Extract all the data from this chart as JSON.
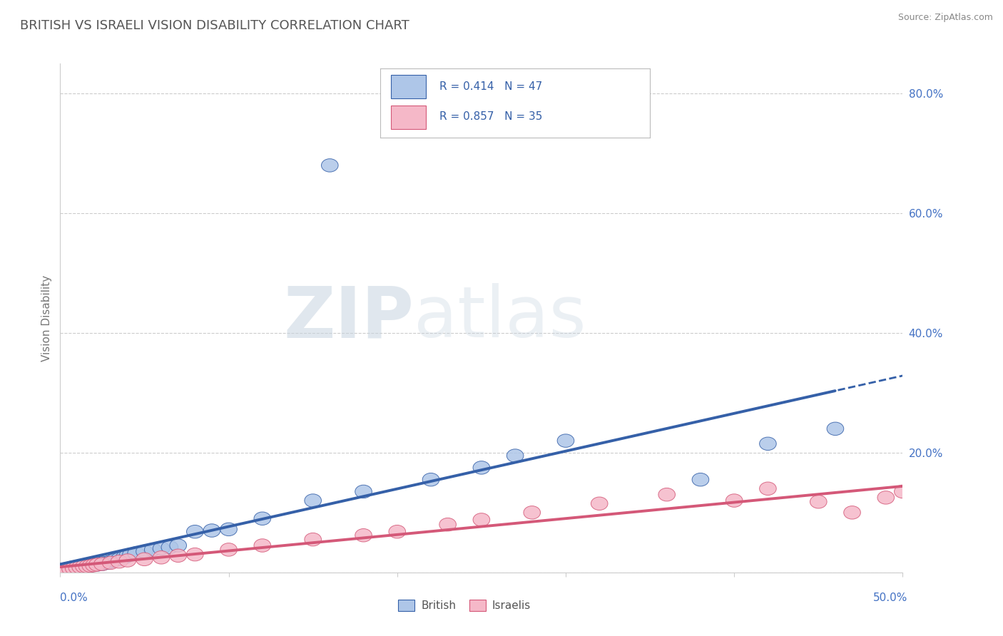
{
  "title": "BRITISH VS ISRAELI VISION DISABILITY CORRELATION CHART",
  "source": "Source: ZipAtlas.com",
  "ylabel": "Vision Disability",
  "xlim": [
    0.0,
    0.5
  ],
  "ylim": [
    0.0,
    0.85
  ],
  "ytick_vals": [
    0.0,
    0.2,
    0.4,
    0.6,
    0.8
  ],
  "ytick_labels": [
    "",
    "20.0%",
    "40.0%",
    "60.0%",
    "80.0%"
  ],
  "grid_color": "#cccccc",
  "background_color": "#ffffff",
  "british_color": "#aec6e8",
  "british_line_color": "#3560a8",
  "israeli_color": "#f5b8c8",
  "israeli_line_color": "#d45878",
  "british_R": 0.414,
  "british_N": 47,
  "israeli_R": 0.857,
  "israeli_N": 35,
  "british_scatter_x": [
    0.002,
    0.004,
    0.006,
    0.007,
    0.008,
    0.009,
    0.01,
    0.011,
    0.012,
    0.013,
    0.014,
    0.015,
    0.016,
    0.018,
    0.019,
    0.02,
    0.022,
    0.023,
    0.025,
    0.026,
    0.028,
    0.03,
    0.032,
    0.035,
    0.038,
    0.04,
    0.042,
    0.045,
    0.05,
    0.055,
    0.06,
    0.065,
    0.07,
    0.08,
    0.09,
    0.1,
    0.12,
    0.15,
    0.16,
    0.18,
    0.22,
    0.25,
    0.27,
    0.3,
    0.38,
    0.42,
    0.46
  ],
  "british_scatter_y": [
    0.005,
    0.006,
    0.007,
    0.008,
    0.006,
    0.009,
    0.008,
    0.01,
    0.009,
    0.011,
    0.01,
    0.012,
    0.011,
    0.013,
    0.012,
    0.014,
    0.013,
    0.015,
    0.014,
    0.016,
    0.016,
    0.018,
    0.02,
    0.022,
    0.025,
    0.028,
    0.03,
    0.032,
    0.035,
    0.038,
    0.04,
    0.042,
    0.045,
    0.068,
    0.07,
    0.072,
    0.09,
    0.12,
    0.68,
    0.135,
    0.155,
    0.175,
    0.195,
    0.22,
    0.155,
    0.215,
    0.24
  ],
  "israeli_scatter_x": [
    0.002,
    0.004,
    0.006,
    0.008,
    0.01,
    0.012,
    0.014,
    0.016,
    0.018,
    0.02,
    0.022,
    0.025,
    0.03,
    0.035,
    0.04,
    0.05,
    0.06,
    0.07,
    0.08,
    0.1,
    0.12,
    0.15,
    0.18,
    0.2,
    0.23,
    0.25,
    0.28,
    0.32,
    0.36,
    0.4,
    0.42,
    0.45,
    0.47,
    0.49,
    0.5
  ],
  "israeli_scatter_y": [
    0.004,
    0.005,
    0.006,
    0.007,
    0.008,
    0.009,
    0.01,
    0.01,
    0.011,
    0.012,
    0.013,
    0.014,
    0.016,
    0.018,
    0.02,
    0.022,
    0.025,
    0.028,
    0.03,
    0.038,
    0.045,
    0.055,
    0.062,
    0.068,
    0.08,
    0.088,
    0.1,
    0.115,
    0.13,
    0.12,
    0.14,
    0.118,
    0.1,
    0.125,
    0.135
  ],
  "watermark_zip": "ZIP",
  "watermark_atlas": "atlas",
  "title_color": "#555555",
  "title_fontsize": 13,
  "axis_label_color": "#4472c4",
  "source_color": "#888888"
}
